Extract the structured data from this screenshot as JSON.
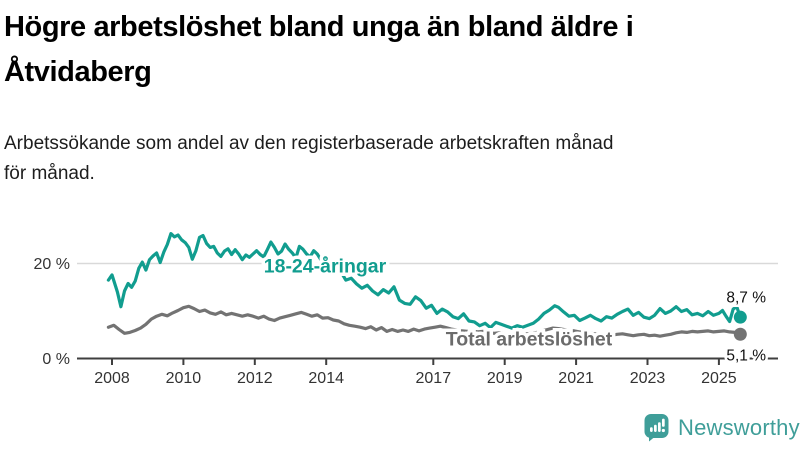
{
  "header": {
    "title_line1": "Högre arbetslöshet bland unga än bland äldre i",
    "title_line2": "Åtvidaberg",
    "subtitle_line1": "Arbetssökande som andel av den registerbaserade arbetskraften månad",
    "subtitle_line2": "för månad."
  },
  "footer": {
    "brand": "Newsworthy",
    "brand_color": "#3f9e99",
    "logo_icon": "bar-chart-speech-bubble-icon"
  },
  "chart_data": {
    "type": "line",
    "unit": "%",
    "grid": "single-horizontal-gridline-at-20",
    "legend_position": "inline-labels-on-lines",
    "ylim": [
      0,
      28
    ],
    "xlim": [
      2007.8,
      2026.2
    ],
    "y_ticks": [
      {
        "value": 0,
        "label": "0 %"
      },
      {
        "value": 20,
        "label": "20 %"
      }
    ],
    "x_ticks": [
      {
        "value": 2008,
        "label": "2008"
      },
      {
        "value": 2010,
        "label": "2010"
      },
      {
        "value": 2012,
        "label": "2012"
      },
      {
        "value": 2014,
        "label": "2014"
      },
      {
        "value": 2017,
        "label": "2017"
      },
      {
        "value": 2019,
        "label": "2019"
      },
      {
        "value": 2021,
        "label": "2021"
      },
      {
        "value": 2023,
        "label": "2023"
      },
      {
        "value": 2025,
        "label": "2025"
      }
    ],
    "axis_color": "#3f3f3f",
    "tick_label_color": "#333333",
    "gridline_color": "#d9d9d9",
    "end_label_color": "#111111",
    "series": [
      {
        "name": "18-24-åringar",
        "color": "#119d8f",
        "end_label": "8,7 %",
        "end_value": 8.7,
        "points": [
          [
            2007.9,
            16.5
          ],
          [
            2008.0,
            17.6
          ],
          [
            2008.15,
            14.0
          ],
          [
            2008.25,
            10.9
          ],
          [
            2008.35,
            14.2
          ],
          [
            2008.45,
            15.8
          ],
          [
            2008.55,
            15.0
          ],
          [
            2008.65,
            16.3
          ],
          [
            2008.75,
            19.0
          ],
          [
            2008.85,
            20.3
          ],
          [
            2008.95,
            18.6
          ],
          [
            2009.05,
            20.8
          ],
          [
            2009.15,
            21.6
          ],
          [
            2009.25,
            22.2
          ],
          [
            2009.35,
            20.2
          ],
          [
            2009.45,
            22.4
          ],
          [
            2009.55,
            24.0
          ],
          [
            2009.65,
            26.3
          ],
          [
            2009.75,
            25.6
          ],
          [
            2009.85,
            26.0
          ],
          [
            2009.95,
            25.0
          ],
          [
            2010.05,
            24.4
          ],
          [
            2010.15,
            23.4
          ],
          [
            2010.25,
            20.9
          ],
          [
            2010.35,
            22.7
          ],
          [
            2010.45,
            25.5
          ],
          [
            2010.55,
            25.9
          ],
          [
            2010.65,
            24.2
          ],
          [
            2010.75,
            23.4
          ],
          [
            2010.85,
            23.6
          ],
          [
            2010.95,
            22.2
          ],
          [
            2011.05,
            21.5
          ],
          [
            2011.15,
            22.6
          ],
          [
            2011.25,
            23.1
          ],
          [
            2011.35,
            21.9
          ],
          [
            2011.45,
            22.9
          ],
          [
            2011.55,
            22.0
          ],
          [
            2011.65,
            20.8
          ],
          [
            2011.75,
            21.8
          ],
          [
            2011.85,
            21.3
          ],
          [
            2011.95,
            22.0
          ],
          [
            2012.05,
            22.7
          ],
          [
            2012.15,
            21.9
          ],
          [
            2012.25,
            21.4
          ],
          [
            2012.35,
            22.9
          ],
          [
            2012.45,
            24.5
          ],
          [
            2012.55,
            23.4
          ],
          [
            2012.65,
            22.0
          ],
          [
            2012.75,
            22.6
          ],
          [
            2012.85,
            24.1
          ],
          [
            2012.95,
            23.0
          ],
          [
            2013.05,
            22.2
          ],
          [
            2013.15,
            21.2
          ],
          [
            2013.25,
            23.6
          ],
          [
            2013.35,
            23.0
          ],
          [
            2013.45,
            22.0
          ],
          [
            2013.55,
            21.4
          ],
          [
            2013.65,
            22.7
          ],
          [
            2013.75,
            22.0
          ],
          [
            2013.85,
            20.8
          ],
          [
            2013.95,
            21.3
          ],
          [
            2014.1,
            20.4
          ],
          [
            2014.25,
            19.6
          ],
          [
            2014.4,
            18.4
          ],
          [
            2014.55,
            16.5
          ],
          [
            2014.7,
            16.9
          ],
          [
            2014.85,
            15.7
          ],
          [
            2015.0,
            14.8
          ],
          [
            2015.15,
            15.4
          ],
          [
            2015.3,
            14.2
          ],
          [
            2015.45,
            13.4
          ],
          [
            2015.6,
            14.5
          ],
          [
            2015.75,
            13.8
          ],
          [
            2015.9,
            15.1
          ],
          [
            2016.05,
            12.3
          ],
          [
            2016.2,
            11.6
          ],
          [
            2016.35,
            11.4
          ],
          [
            2016.5,
            13.0
          ],
          [
            2016.65,
            12.2
          ],
          [
            2016.8,
            10.6
          ],
          [
            2016.95,
            11.2
          ],
          [
            2017.1,
            9.5
          ],
          [
            2017.25,
            10.4
          ],
          [
            2017.4,
            9.8
          ],
          [
            2017.55,
            8.8
          ],
          [
            2017.7,
            8.4
          ],
          [
            2017.85,
            9.4
          ],
          [
            2018.0,
            7.9
          ],
          [
            2018.15,
            7.7
          ],
          [
            2018.3,
            6.9
          ],
          [
            2018.45,
            7.4
          ],
          [
            2018.6,
            6.5
          ],
          [
            2018.75,
            7.6
          ],
          [
            2018.9,
            7.2
          ],
          [
            2019.05,
            6.8
          ],
          [
            2019.2,
            6.4
          ],
          [
            2019.35,
            6.9
          ],
          [
            2019.5,
            6.6
          ],
          [
            2019.65,
            7.0
          ],
          [
            2019.8,
            7.4
          ],
          [
            2019.95,
            8.3
          ],
          [
            2020.1,
            9.5
          ],
          [
            2020.25,
            10.2
          ],
          [
            2020.4,
            11.1
          ],
          [
            2020.5,
            10.8
          ],
          [
            2020.65,
            9.8
          ],
          [
            2020.8,
            8.9
          ],
          [
            2020.95,
            9.1
          ],
          [
            2021.1,
            8.0
          ],
          [
            2021.25,
            8.5
          ],
          [
            2021.4,
            9.1
          ],
          [
            2021.55,
            8.4
          ],
          [
            2021.7,
            7.9
          ],
          [
            2021.85,
            8.8
          ],
          [
            2022.0,
            8.5
          ],
          [
            2022.15,
            9.3
          ],
          [
            2022.3,
            9.9
          ],
          [
            2022.45,
            10.4
          ],
          [
            2022.6,
            9.1
          ],
          [
            2022.75,
            9.7
          ],
          [
            2022.9,
            8.7
          ],
          [
            2023.05,
            8.4
          ],
          [
            2023.2,
            9.1
          ],
          [
            2023.35,
            10.5
          ],
          [
            2023.5,
            9.5
          ],
          [
            2023.65,
            10.0
          ],
          [
            2023.8,
            10.9
          ],
          [
            2023.95,
            9.9
          ],
          [
            2024.1,
            10.3
          ],
          [
            2024.25,
            9.2
          ],
          [
            2024.4,
            9.5
          ],
          [
            2024.55,
            9.0
          ],
          [
            2024.7,
            9.9
          ],
          [
            2024.85,
            9.1
          ],
          [
            2025.0,
            9.5
          ],
          [
            2025.1,
            10.1
          ],
          [
            2025.2,
            8.9
          ],
          [
            2025.3,
            7.8
          ],
          [
            2025.4,
            10.4
          ],
          [
            2025.5,
            10.9
          ],
          [
            2025.6,
            8.7
          ]
        ]
      },
      {
        "name": "Total arbetslöshet",
        "color": "#737373",
        "label_color": "#6b6b6b",
        "end_label": "5,1 %",
        "end_value": 5.1,
        "points": [
          [
            2007.9,
            6.6
          ],
          [
            2008.05,
            7.0
          ],
          [
            2008.2,
            6.1
          ],
          [
            2008.35,
            5.3
          ],
          [
            2008.5,
            5.5
          ],
          [
            2008.65,
            5.9
          ],
          [
            2008.8,
            6.4
          ],
          [
            2008.95,
            7.2
          ],
          [
            2009.1,
            8.3
          ],
          [
            2009.25,
            8.9
          ],
          [
            2009.4,
            9.3
          ],
          [
            2009.55,
            9.0
          ],
          [
            2009.7,
            9.6
          ],
          [
            2009.85,
            10.1
          ],
          [
            2010.0,
            10.7
          ],
          [
            2010.15,
            11.0
          ],
          [
            2010.3,
            10.5
          ],
          [
            2010.45,
            9.9
          ],
          [
            2010.6,
            10.2
          ],
          [
            2010.75,
            9.6
          ],
          [
            2010.9,
            9.3
          ],
          [
            2011.05,
            9.8
          ],
          [
            2011.2,
            9.2
          ],
          [
            2011.35,
            9.5
          ],
          [
            2011.5,
            9.2
          ],
          [
            2011.65,
            8.9
          ],
          [
            2011.8,
            9.2
          ],
          [
            2011.95,
            8.9
          ],
          [
            2012.1,
            8.5
          ],
          [
            2012.25,
            8.9
          ],
          [
            2012.4,
            8.3
          ],
          [
            2012.55,
            8.0
          ],
          [
            2012.7,
            8.5
          ],
          [
            2012.85,
            8.8
          ],
          [
            2013.0,
            9.1
          ],
          [
            2013.15,
            9.4
          ],
          [
            2013.3,
            9.7
          ],
          [
            2013.45,
            9.3
          ],
          [
            2013.6,
            8.9
          ],
          [
            2013.75,
            9.2
          ],
          [
            2013.9,
            8.5
          ],
          [
            2014.05,
            8.6
          ],
          [
            2014.2,
            8.1
          ],
          [
            2014.35,
            7.9
          ],
          [
            2014.5,
            7.3
          ],
          [
            2014.65,
            7.0
          ],
          [
            2014.8,
            6.8
          ],
          [
            2014.95,
            6.6
          ],
          [
            2015.1,
            6.3
          ],
          [
            2015.25,
            6.7
          ],
          [
            2015.4,
            6.0
          ],
          [
            2015.55,
            6.5
          ],
          [
            2015.7,
            5.7
          ],
          [
            2015.85,
            6.1
          ],
          [
            2016.0,
            5.7
          ],
          [
            2016.15,
            6.0
          ],
          [
            2016.3,
            5.7
          ],
          [
            2016.45,
            6.2
          ],
          [
            2016.6,
            5.8
          ],
          [
            2016.75,
            6.2
          ],
          [
            2016.9,
            6.4
          ],
          [
            2017.05,
            6.6
          ],
          [
            2017.2,
            6.8
          ],
          [
            2017.35,
            6.5
          ],
          [
            2017.5,
            6.2
          ],
          [
            2017.65,
            6.0
          ],
          [
            2017.8,
            5.8
          ],
          [
            2017.95,
            5.7
          ],
          [
            2018.1,
            5.8
          ],
          [
            2018.25,
            5.6
          ],
          [
            2018.4,
            5.7
          ],
          [
            2018.55,
            5.5
          ],
          [
            2018.7,
            5.3
          ],
          [
            2018.85,
            5.4
          ],
          [
            2019.0,
            5.2
          ],
          [
            2019.15,
            5.0
          ],
          [
            2019.3,
            5.1
          ],
          [
            2019.45,
            5.0
          ],
          [
            2019.6,
            5.2
          ],
          [
            2019.75,
            5.3
          ],
          [
            2019.9,
            5.5
          ],
          [
            2020.05,
            5.8
          ],
          [
            2020.2,
            6.1
          ],
          [
            2020.35,
            6.4
          ],
          [
            2020.5,
            6.3
          ],
          [
            2020.65,
            6.1
          ],
          [
            2020.8,
            5.9
          ],
          [
            2020.95,
            5.8
          ],
          [
            2021.1,
            5.6
          ],
          [
            2021.25,
            5.5
          ],
          [
            2021.4,
            5.3
          ],
          [
            2021.55,
            5.2
          ],
          [
            2021.7,
            5.1
          ],
          [
            2021.85,
            5.0
          ],
          [
            2022.0,
            4.9
          ],
          [
            2022.15,
            5.1
          ],
          [
            2022.3,
            5.2
          ],
          [
            2022.45,
            5.0
          ],
          [
            2022.6,
            4.8
          ],
          [
            2022.75,
            5.0
          ],
          [
            2022.9,
            5.1
          ],
          [
            2023.05,
            4.8
          ],
          [
            2023.2,
            4.9
          ],
          [
            2023.35,
            4.7
          ],
          [
            2023.5,
            4.9
          ],
          [
            2023.65,
            5.1
          ],
          [
            2023.8,
            5.4
          ],
          [
            2023.95,
            5.6
          ],
          [
            2024.1,
            5.5
          ],
          [
            2024.25,
            5.7
          ],
          [
            2024.4,
            5.6
          ],
          [
            2024.55,
            5.7
          ],
          [
            2024.7,
            5.8
          ],
          [
            2024.85,
            5.6
          ],
          [
            2025.0,
            5.7
          ],
          [
            2025.15,
            5.8
          ],
          [
            2025.3,
            5.6
          ],
          [
            2025.45,
            5.5
          ],
          [
            2025.6,
            5.1
          ]
        ]
      }
    ]
  }
}
